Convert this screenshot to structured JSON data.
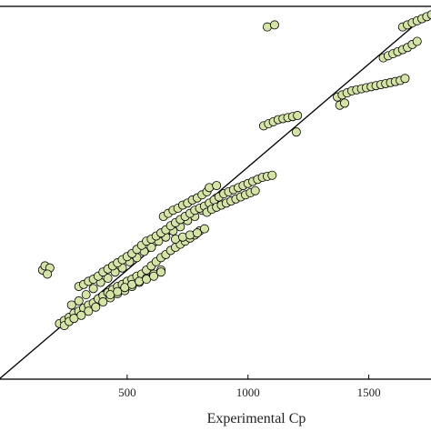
{
  "chart_data": {
    "type": "scatter",
    "title": "",
    "xlabel": "Experimental Cp",
    "ylabel": "",
    "xlim": [
      -30,
      1780
    ],
    "ylim": [
      -30,
      1780
    ],
    "xticks": [
      500,
      1000,
      1500
    ],
    "grid": false,
    "legend": "none",
    "colors": {
      "marker_fill": "#d4e3a6",
      "marker_edge": "#000000",
      "line": "#000000"
    },
    "reference_line": {
      "type": "y=x",
      "from": [
        -30,
        -30
      ],
      "to": [
        1780,
        1780
      ]
    },
    "series": [
      {
        "values": [
          [
            220,
            240
          ],
          [
            240,
            255
          ],
          [
            260,
            270
          ],
          [
            280,
            290
          ],
          [
            300,
            300
          ],
          [
            320,
            315
          ],
          [
            340,
            330
          ],
          [
            360,
            340
          ],
          [
            380,
            360
          ],
          [
            400,
            375
          ],
          [
            420,
            390
          ],
          [
            440,
            405
          ],
          [
            460,
            420
          ],
          [
            480,
            430
          ],
          [
            500,
            445
          ],
          [
            520,
            455
          ],
          [
            540,
            470
          ],
          [
            560,
            480
          ],
          [
            580,
            500
          ],
          [
            600,
            520
          ],
          [
            620,
            540
          ],
          [
            640,
            560
          ],
          [
            660,
            575
          ],
          [
            680,
            595
          ],
          [
            700,
            610
          ],
          [
            720,
            625
          ],
          [
            740,
            640
          ],
          [
            760,
            655
          ],
          [
            780,
            670
          ],
          [
            800,
            690
          ],
          [
            820,
            700
          ],
          [
            270,
            330
          ],
          [
            300,
            350
          ],
          [
            330,
            380
          ],
          [
            360,
            410
          ],
          [
            390,
            440
          ],
          [
            420,
            460
          ],
          [
            450,
            490
          ],
          [
            480,
            510
          ],
          [
            510,
            540
          ],
          [
            540,
            560
          ],
          [
            570,
            590
          ],
          [
            600,
            610
          ],
          [
            630,
            640
          ],
          [
            660,
            660
          ],
          [
            690,
            690
          ],
          [
            720,
            710
          ],
          [
            750,
            740
          ],
          [
            780,
            760
          ],
          [
            810,
            790
          ],
          [
            840,
            820
          ],
          [
            870,
            850
          ],
          [
            240,
            230
          ],
          [
            260,
            250
          ],
          [
            280,
            265
          ],
          [
            310,
            280
          ],
          [
            340,
            300
          ],
          [
            370,
            320
          ],
          [
            400,
            345
          ],
          [
            430,
            365
          ],
          [
            460,
            385
          ],
          [
            490,
            400
          ],
          [
            520,
            420
          ],
          [
            550,
            440
          ],
          [
            580,
            460
          ],
          [
            610,
            480
          ],
          [
            640,
            500
          ],
          [
            430,
            380
          ],
          [
            460,
            395
          ],
          [
            490,
            415
          ],
          [
            520,
            430
          ],
          [
            550,
            445
          ],
          [
            580,
            455
          ],
          [
            610,
            470
          ],
          [
            640,
            490
          ],
          [
            300,
            420
          ],
          [
            320,
            430
          ],
          [
            340,
            445
          ],
          [
            360,
            455
          ],
          [
            380,
            470
          ],
          [
            400,
            490
          ],
          [
            420,
            505
          ],
          [
            440,
            520
          ],
          [
            460,
            535
          ],
          [
            480,
            550
          ],
          [
            500,
            565
          ],
          [
            520,
            580
          ],
          [
            540,
            600
          ],
          [
            560,
            620
          ],
          [
            580,
            640
          ],
          [
            600,
            650
          ],
          [
            620,
            665
          ],
          [
            640,
            680
          ],
          [
            660,
            695
          ],
          [
            680,
            715
          ],
          [
            700,
            730
          ],
          [
            720,
            745
          ],
          [
            740,
            760
          ],
          [
            760,
            775
          ],
          [
            780,
            790
          ],
          [
            800,
            800
          ],
          [
            820,
            810
          ],
          [
            840,
            825
          ],
          [
            860,
            840
          ],
          [
            880,
            855
          ],
          [
            900,
            870
          ],
          [
            920,
            880
          ],
          [
            940,
            890
          ],
          [
            960,
            900
          ],
          [
            980,
            910
          ],
          [
            1000,
            920
          ],
          [
            1020,
            930
          ],
          [
            1040,
            940
          ],
          [
            1060,
            950
          ],
          [
            1080,
            955
          ],
          [
            1100,
            960
          ],
          [
            830,
            780
          ],
          [
            850,
            795
          ],
          [
            870,
            805
          ],
          [
            890,
            815
          ],
          [
            910,
            825
          ],
          [
            930,
            835
          ],
          [
            950,
            845
          ],
          [
            970,
            855
          ],
          [
            990,
            865
          ],
          [
            1010,
            875
          ],
          [
            1030,
            885
          ],
          [
            650,
            760
          ],
          [
            670,
            775
          ],
          [
            690,
            790
          ],
          [
            710,
            800
          ],
          [
            730,
            815
          ],
          [
            750,
            825
          ],
          [
            770,
            840
          ],
          [
            790,
            850
          ],
          [
            810,
            865
          ],
          [
            830,
            880
          ],
          [
            700,
            650
          ],
          [
            730,
            660
          ],
          [
            760,
            670
          ],
          [
            790,
            680
          ],
          [
            150,
            500
          ],
          [
            160,
            520
          ],
          [
            180,
            510
          ],
          [
            170,
            480
          ],
          [
            1065,
            1200
          ],
          [
            1085,
            1210
          ],
          [
            1105,
            1220
          ],
          [
            1125,
            1230
          ],
          [
            1145,
            1235
          ],
          [
            1165,
            1240
          ],
          [
            1185,
            1245
          ],
          [
            1205,
            1250
          ],
          [
            1370,
            1340
          ],
          [
            1390,
            1350
          ],
          [
            1410,
            1360
          ],
          [
            1430,
            1370
          ],
          [
            1450,
            1375
          ],
          [
            1470,
            1380
          ],
          [
            1490,
            1385
          ],
          [
            1510,
            1390
          ],
          [
            1530,
            1395
          ],
          [
            1550,
            1400
          ],
          [
            1570,
            1405
          ],
          [
            1590,
            1410
          ],
          [
            1610,
            1415
          ],
          [
            1630,
            1420
          ],
          [
            1650,
            1430
          ],
          [
            1380,
            1300
          ],
          [
            1400,
            1310
          ],
          [
            1560,
            1530
          ],
          [
            1580,
            1540
          ],
          [
            1600,
            1550
          ],
          [
            1620,
            1560
          ],
          [
            1640,
            1570
          ],
          [
            1660,
            1580
          ],
          [
            1680,
            1595
          ],
          [
            1700,
            1610
          ],
          [
            1640,
            1680
          ],
          [
            1660,
            1690
          ],
          [
            1680,
            1700
          ],
          [
            1700,
            1710
          ],
          [
            1720,
            1720
          ],
          [
            1740,
            1730
          ],
          [
            1760,
            1740
          ],
          [
            1080,
            1680
          ],
          [
            1110,
            1690
          ],
          [
            840,
            900
          ],
          [
            870,
            910
          ],
          [
            1200,
            1170
          ]
        ]
      }
    ]
  }
}
